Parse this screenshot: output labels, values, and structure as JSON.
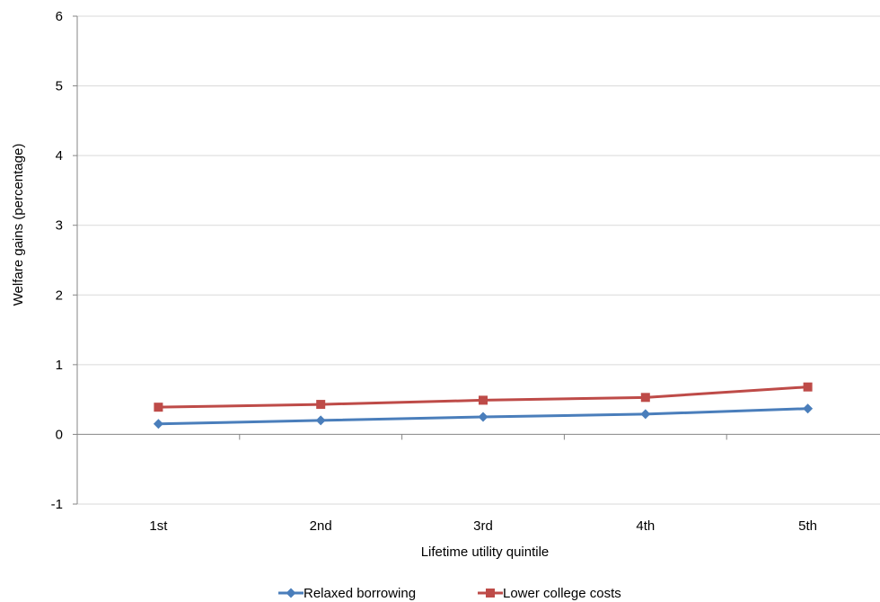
{
  "chart_data": {
    "type": "line",
    "title": "",
    "xlabel": "Lifetime utility quintile",
    "ylabel": "Welfare gains (percentage)",
    "categories": [
      "1st",
      "2nd",
      "3rd",
      "4th",
      "5th"
    ],
    "ylim": [
      -1,
      6
    ],
    "yticks": [
      -1,
      0,
      1,
      2,
      3,
      4,
      5,
      6
    ],
    "grid": true,
    "legend_position": "bottom",
    "series": [
      {
        "name": "Relaxed borrowing",
        "values": [
          0.15,
          0.2,
          0.25,
          0.29,
          0.37
        ],
        "color": "#4a7ebb",
        "marker": "diamond"
      },
      {
        "name": "Lower college costs",
        "values": [
          0.39,
          0.43,
          0.49,
          0.53,
          0.68
        ],
        "color": "#be4b48",
        "marker": "square"
      }
    ]
  }
}
